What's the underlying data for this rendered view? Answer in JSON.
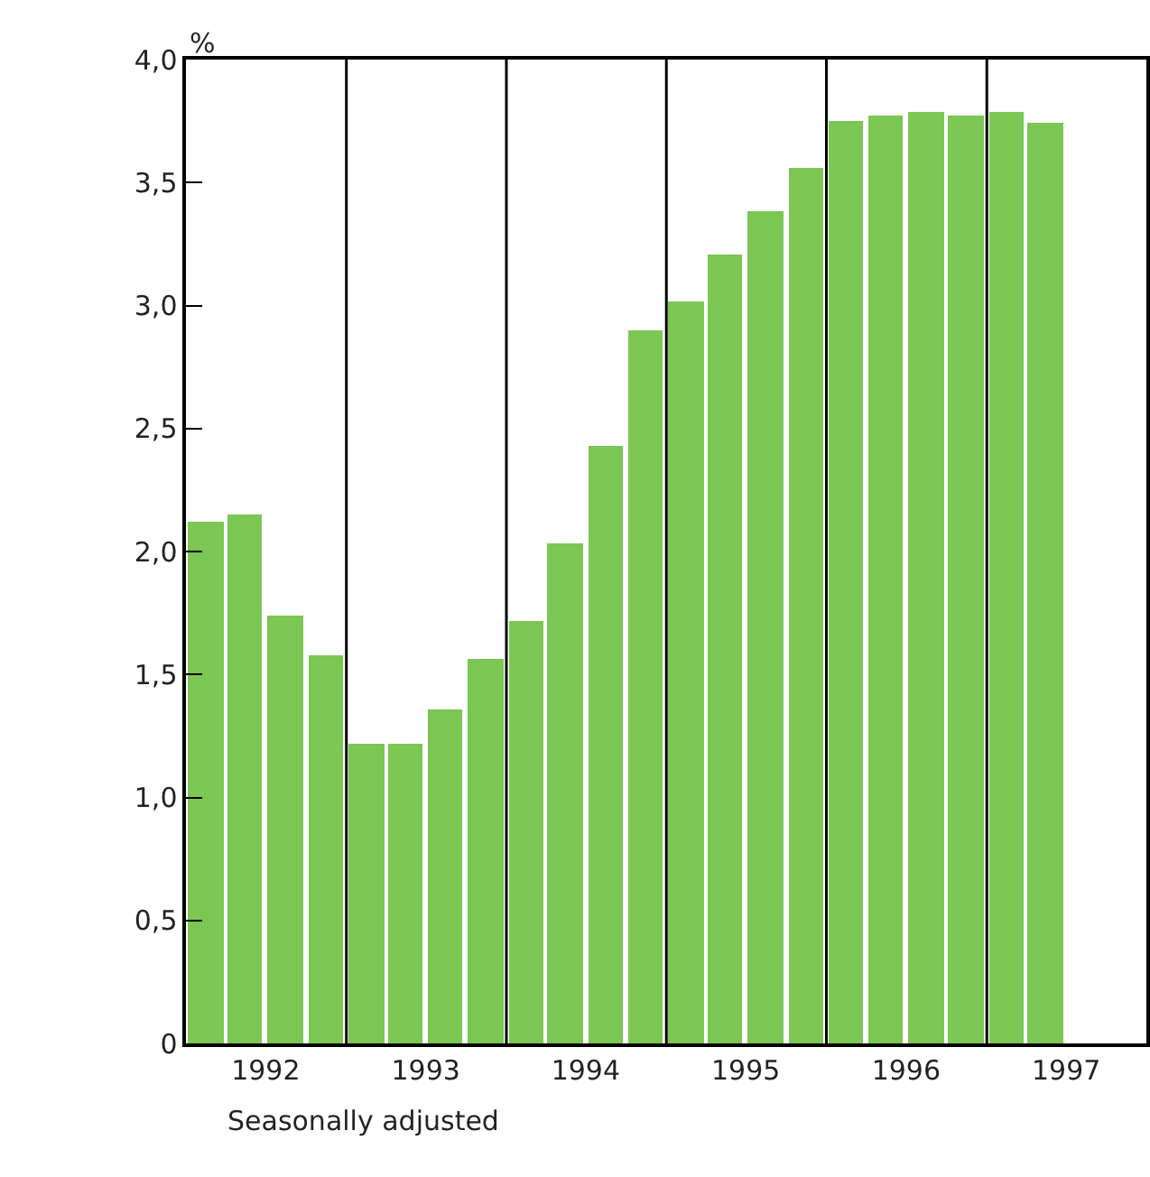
{
  "chart_data": {
    "type": "bar",
    "ylabel": "%",
    "x": [
      "1992-02-15",
      "1992-05-15",
      "1992-08-15",
      "1992-11-15",
      "1993-02-15",
      "1993-05-15",
      "1993-08-15",
      "1993-11-15",
      "1994-02-15",
      "1994-05-15",
      "1994-08-15",
      "1994-11-15",
      "1995-02-15",
      "1995-05-15",
      "1995-08-15",
      "1995-11-15",
      "1996-02-15",
      "1996-05-15",
      "1996-08-15",
      "1996-11-15",
      "1997-02-15",
      "1997-05-15"
    ],
    "values": [
      2.12,
      2.15,
      1.74,
      1.58,
      1.22,
      1.22,
      1.36,
      1.56,
      1.72,
      2.03,
      2.43,
      2.9,
      3.02,
      3.21,
      3.38,
      3.56,
      3.75,
      3.77,
      3.79,
      3.77,
      3.79,
      3.74
    ],
    "color": "#7cc653",
    "xlim": [
      "1992-01-01",
      "1997-12-31"
    ],
    "xticks": [
      {
        "value": "1992-07-01",
        "label": "1992"
      },
      {
        "value": "1993-07-01",
        "label": "1993"
      },
      {
        "value": "1994-07-01",
        "label": "1994"
      },
      {
        "value": "1995-07-01",
        "label": "1995"
      },
      {
        "value": "1996-07-01",
        "label": "1996"
      },
      {
        "value": "1997-07-01",
        "label": "1997"
      }
    ],
    "ylim": [
      0,
      4
    ],
    "yticks": [
      0,
      {
        "value": 0.5,
        "label": "0,5"
      },
      {
        "value": 1,
        "label": "1,0"
      },
      {
        "value": 1.5,
        "label": "1,5"
      },
      {
        "value": 2,
        "label": "2,0"
      },
      {
        "value": 2.5,
        "label": "2,5"
      },
      {
        "value": 3,
        "label": "3,0"
      },
      {
        "value": 3.5,
        "label": "3,5"
      },
      {
        "value": 4,
        "label": "4,0"
      }
    ],
    "ref_lines": [
      {
        "axis": "x",
        "value": "1993-01-01",
        "color": "#000000"
      },
      {
        "axis": "x",
        "value": "1994-01-01",
        "color": "#000000"
      },
      {
        "axis": "x",
        "value": "1995-01-01",
        "color": "#000000"
      },
      {
        "axis": "x",
        "value": "1996-01-01",
        "color": "#000000"
      },
      {
        "axis": "x",
        "value": "1997-01-01",
        "color": "#000000"
      }
    ],
    "annotations": [
      "Seasonally adjusted"
    ]
  }
}
